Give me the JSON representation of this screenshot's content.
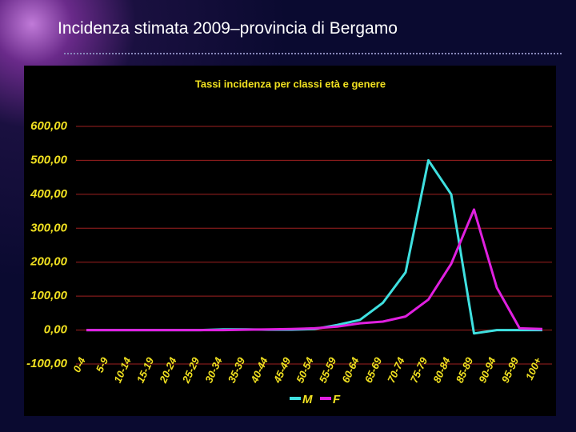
{
  "slide": {
    "title": "Incidenza stimata 2009–provincia di Bergamo"
  },
  "chart_data": {
    "type": "line",
    "title": "Tassi  incidenza per classi età e genere",
    "categories": [
      "0-4",
      "5-9",
      "10-14",
      "15-19",
      "20-24",
      "25-29",
      "30-34",
      "35-39",
      "40-44",
      "45-49",
      "50-54",
      "55-59",
      "60-64",
      "65-69",
      "70-74",
      "75-79",
      "80-84",
      "85-89",
      "90-94",
      "95-99",
      "100+"
    ],
    "series": [
      {
        "name": "M",
        "color": "#3fe0e0",
        "values": [
          0,
          0,
          0,
          0,
          0,
          0,
          2,
          2,
          1,
          1,
          3,
          15,
          30,
          80,
          170,
          500,
          400,
          -10,
          0,
          0,
          0
        ]
      },
      {
        "name": "F",
        "color": "#e020e0",
        "values": [
          0,
          0,
          0,
          0,
          0,
          0,
          0,
          1,
          2,
          3,
          5,
          10,
          20,
          25,
          40,
          90,
          195,
          355,
          125,
          5,
          3
        ]
      }
    ],
    "ylim": [
      -100,
      600
    ],
    "yticks": [
      {
        "value": -100,
        "label": "-100,00"
      },
      {
        "value": 0,
        "label": "0,00"
      },
      {
        "value": 100,
        "label": "100,00"
      },
      {
        "value": 200,
        "label": "200,00"
      },
      {
        "value": 300,
        "label": "300,00"
      },
      {
        "value": 400,
        "label": "400,00"
      },
      {
        "value": 500,
        "label": "500,00"
      },
      {
        "value": 600,
        "label": "600,00"
      }
    ],
    "grid": true,
    "legend": "bottom"
  }
}
